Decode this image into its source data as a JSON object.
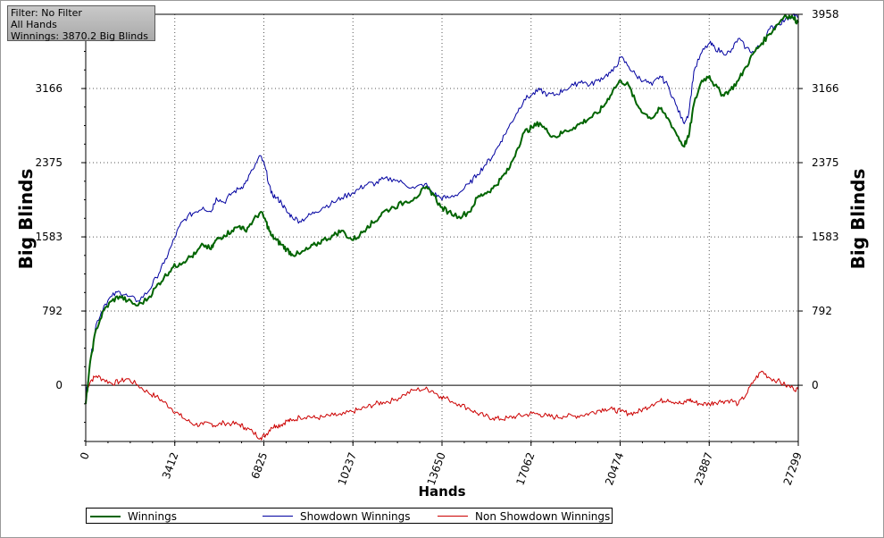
{
  "info_box": {
    "filter": "Filter: No Filter",
    "hands": "All Hands",
    "winnings": "Winnings: 3870.2 Big Blinds"
  },
  "chart_data": {
    "type": "line",
    "xlabel": "Hands",
    "ylabel": "Big Blinds",
    "xlim": [
      0,
      27299
    ],
    "ylim": [
      -600,
      3958
    ],
    "x_ticks": [
      "0",
      "3412",
      "6825",
      "10237",
      "13650",
      "17062",
      "20474",
      "23887",
      "27299"
    ],
    "y_ticks": [
      "0",
      "792",
      "1583",
      "2375",
      "3166",
      "3958"
    ],
    "grid": true,
    "legend_placement": "bottom",
    "series": [
      {
        "name": "Winnings",
        "color": "#006400",
        "x": [
          0,
          200,
          400,
          700,
          1000,
          1300,
          1600,
          2000,
          2400,
          2700,
          3000,
          3300,
          3600,
          3900,
          4200,
          4500,
          4800,
          5000,
          5300,
          5600,
          5900,
          6100,
          6400,
          6700,
          6900,
          7100,
          7300,
          7500,
          7700,
          7900,
          8200,
          8500,
          8800,
          9100,
          9500,
          9800,
          10200,
          10500,
          10800,
          11100,
          11400,
          11800,
          12200,
          12600,
          13000,
          13300,
          13600,
          13900,
          14300,
          14700,
          15000,
          15300,
          15600,
          15900,
          16200,
          16500,
          16800,
          17100,
          17400,
          17700,
          18000,
          18300,
          18700,
          19000,
          19300,
          19600,
          19900,
          20200,
          20500,
          20800,
          21100,
          21400,
          21700,
          22000,
          22300,
          22600,
          22900,
          23100,
          23300,
          23600,
          23900,
          24100,
          24400,
          24700,
          25000,
          25300,
          25600,
          25900,
          26200,
          26500,
          26800,
          27100,
          27299
        ],
        "values": [
          -200,
          300,
          600,
          800,
          900,
          950,
          900,
          850,
          930,
          1050,
          1150,
          1250,
          1300,
          1350,
          1400,
          1500,
          1450,
          1550,
          1600,
          1650,
          1700,
          1650,
          1750,
          1850,
          1750,
          1600,
          1550,
          1500,
          1450,
          1400,
          1400,
          1450,
          1500,
          1550,
          1600,
          1650,
          1550,
          1600,
          1700,
          1750,
          1850,
          1900,
          1950,
          2000,
          2100,
          2050,
          1900,
          1850,
          1800,
          1850,
          2000,
          2050,
          2100,
          2200,
          2300,
          2500,
          2700,
          2750,
          2800,
          2700,
          2650,
          2700,
          2750,
          2800,
          2850,
          2900,
          3000,
          3150,
          3250,
          3200,
          3000,
          2900,
          2850,
          2950,
          2850,
          2700,
          2550,
          2650,
          3000,
          3250,
          3300,
          3200,
          3100,
          3150,
          3250,
          3400,
          3550,
          3650,
          3750,
          3850,
          3950,
          3920,
          3870
        ]
      },
      {
        "name": "Showdown Winnings",
        "color": "#0000a0",
        "x": [
          0,
          200,
          400,
          700,
          1000,
          1300,
          1600,
          2000,
          2400,
          2700,
          3000,
          3300,
          3600,
          3900,
          4200,
          4500,
          4800,
          5000,
          5300,
          5600,
          5900,
          6100,
          6400,
          6700,
          6900,
          7100,
          7300,
          7500,
          7700,
          7900,
          8200,
          8500,
          8800,
          9100,
          9500,
          9800,
          10200,
          10500,
          10800,
          11100,
          11400,
          11800,
          12200,
          12600,
          13000,
          13300,
          13600,
          13900,
          14300,
          14700,
          15000,
          15300,
          15600,
          15900,
          16200,
          16500,
          16800,
          17100,
          17400,
          17700,
          18000,
          18300,
          18700,
          19000,
          19300,
          19600,
          19900,
          20200,
          20500,
          20800,
          21100,
          21400,
          21700,
          22000,
          22300,
          22600,
          22900,
          23100,
          23300,
          23600,
          23900,
          24100,
          24400,
          24700,
          25000,
          25300,
          25600,
          25900,
          26200,
          26500,
          26800,
          27100,
          27299
        ],
        "values": [
          -100,
          300,
          650,
          850,
          950,
          1000,
          950,
          900,
          1000,
          1150,
          1300,
          1500,
          1700,
          1800,
          1850,
          1900,
          1850,
          2000,
          1950,
          2050,
          2100,
          2150,
          2300,
          2450,
          2300,
          2050,
          2000,
          1950,
          1850,
          1800,
          1750,
          1800,
          1850,
          1900,
          1950,
          2000,
          2050,
          2100,
          2150,
          2150,
          2200,
          2200,
          2150,
          2100,
          2150,
          2050,
          2000,
          2000,
          2050,
          2150,
          2250,
          2350,
          2450,
          2600,
          2750,
          2900,
          3050,
          3100,
          3150,
          3100,
          3100,
          3150,
          3200,
          3250,
          3200,
          3250,
          3300,
          3350,
          3500,
          3400,
          3300,
          3250,
          3200,
          3300,
          3200,
          3000,
          2800,
          2900,
          3350,
          3550,
          3650,
          3600,
          3550,
          3550,
          3700,
          3600,
          3550,
          3650,
          3800,
          3850,
          3900,
          3958,
          3920
        ]
      },
      {
        "name": "Non Showdown Winnings",
        "color": "#cc0000",
        "x": [
          0,
          200,
          400,
          700,
          1000,
          1300,
          1600,
          2000,
          2400,
          2700,
          3000,
          3300,
          3600,
          3900,
          4200,
          4500,
          4800,
          5000,
          5300,
          5600,
          5900,
          6100,
          6400,
          6700,
          6900,
          7100,
          7300,
          7500,
          7700,
          7900,
          8200,
          8500,
          8800,
          9100,
          9500,
          9800,
          10200,
          10500,
          10800,
          11100,
          11400,
          11800,
          12200,
          12600,
          13000,
          13300,
          13600,
          13900,
          14300,
          14700,
          15000,
          15300,
          15600,
          15900,
          16200,
          16500,
          16800,
          17100,
          17400,
          17700,
          18000,
          18300,
          18700,
          19000,
          19300,
          19600,
          19900,
          20200,
          20500,
          20800,
          21100,
          21400,
          21700,
          22000,
          22300,
          22600,
          22900,
          23100,
          23300,
          23600,
          23900,
          24100,
          24400,
          24700,
          25000,
          25300,
          25600,
          25900,
          26200,
          26500,
          26800,
          27100,
          27299
        ],
        "values": [
          -50,
          50,
          100,
          60,
          20,
          40,
          70,
          0,
          -80,
          -120,
          -180,
          -250,
          -320,
          -380,
          -420,
          -420,
          -410,
          -430,
          -400,
          -410,
          -420,
          -450,
          -500,
          -560,
          -530,
          -450,
          -430,
          -420,
          -380,
          -380,
          -340,
          -330,
          -350,
          -340,
          -320,
          -320,
          -280,
          -260,
          -230,
          -200,
          -180,
          -160,
          -100,
          -50,
          -40,
          -60,
          -120,
          -150,
          -200,
          -250,
          -300,
          -330,
          -350,
          -360,
          -350,
          -330,
          -320,
          -300,
          -310,
          -330,
          -340,
          -330,
          -330,
          -320,
          -300,
          -270,
          -250,
          -260,
          -280,
          -300,
          -290,
          -250,
          -200,
          -170,
          -150,
          -180,
          -200,
          -150,
          -180,
          -200,
          -200,
          -180,
          -170,
          -160,
          -200,
          -100,
          50,
          150,
          80,
          50,
          0,
          -30,
          -50
        ]
      }
    ]
  }
}
